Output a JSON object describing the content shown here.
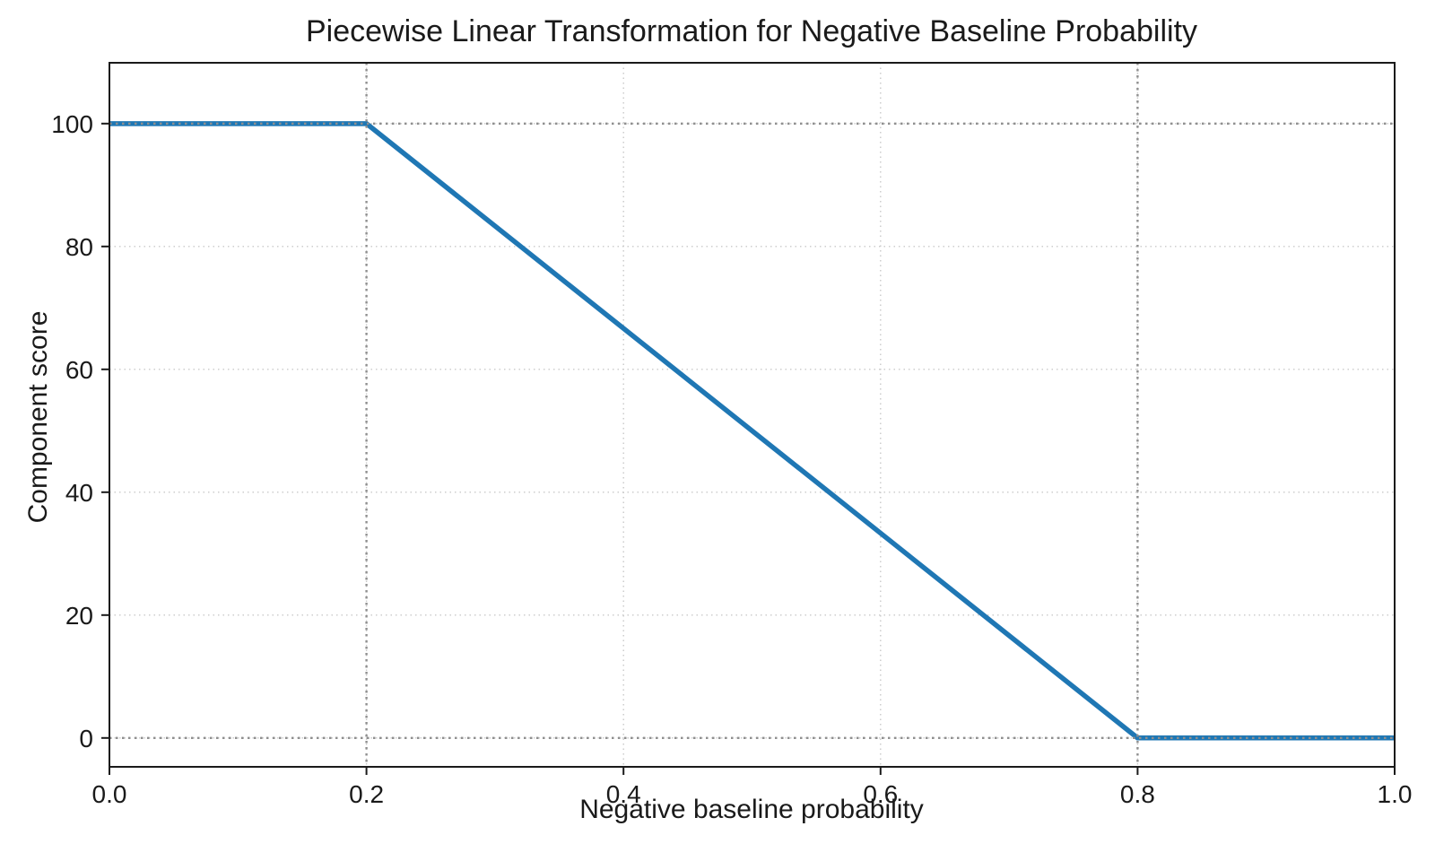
{
  "chart_data": {
    "type": "line",
    "title": "Piecewise Linear Transformation for Negative Baseline Probability",
    "xlabel": "Negative baseline probability",
    "ylabel": "Component score",
    "xlim": [
      0.0,
      1.0
    ],
    "ylim": [
      -4.7,
      109.9
    ],
    "grid": true,
    "legend": false,
    "xticks": [
      {
        "value": 0.0,
        "label": "0.0"
      },
      {
        "value": 0.2,
        "label": "0.2"
      },
      {
        "value": 0.4,
        "label": "0.4"
      },
      {
        "value": 0.6,
        "label": "0.6"
      },
      {
        "value": 0.8,
        "label": "0.8"
      },
      {
        "value": 1.0,
        "label": "1.0"
      }
    ],
    "yticks": [
      {
        "value": 0,
        "label": "0"
      },
      {
        "value": 20,
        "label": "20"
      },
      {
        "value": 40,
        "label": "40"
      },
      {
        "value": 60,
        "label": "60"
      },
      {
        "value": 80,
        "label": "80"
      },
      {
        "value": 100,
        "label": "100"
      }
    ],
    "series": [
      {
        "name": "piecewise-linear-score",
        "color": "#1f77b4",
        "line_width": 5.5,
        "points": [
          {
            "x": 0.0,
            "y": 100
          },
          {
            "x": 0.2,
            "y": 100
          },
          {
            "x": 0.8,
            "y": 0
          },
          {
            "x": 1.0,
            "y": 0
          }
        ]
      }
    ],
    "reference_lines": {
      "x": [
        0.2,
        0.8
      ],
      "y": [
        0,
        100
      ],
      "style": "dotted",
      "color": "#8f8f8f"
    },
    "colors": {
      "line": "#1f77b4",
      "grid": "#c9c9c9",
      "reference": "#8f8f8f",
      "spine": "#1a1a1a",
      "text": "#1a1a1a",
      "background": "#ffffff"
    }
  }
}
